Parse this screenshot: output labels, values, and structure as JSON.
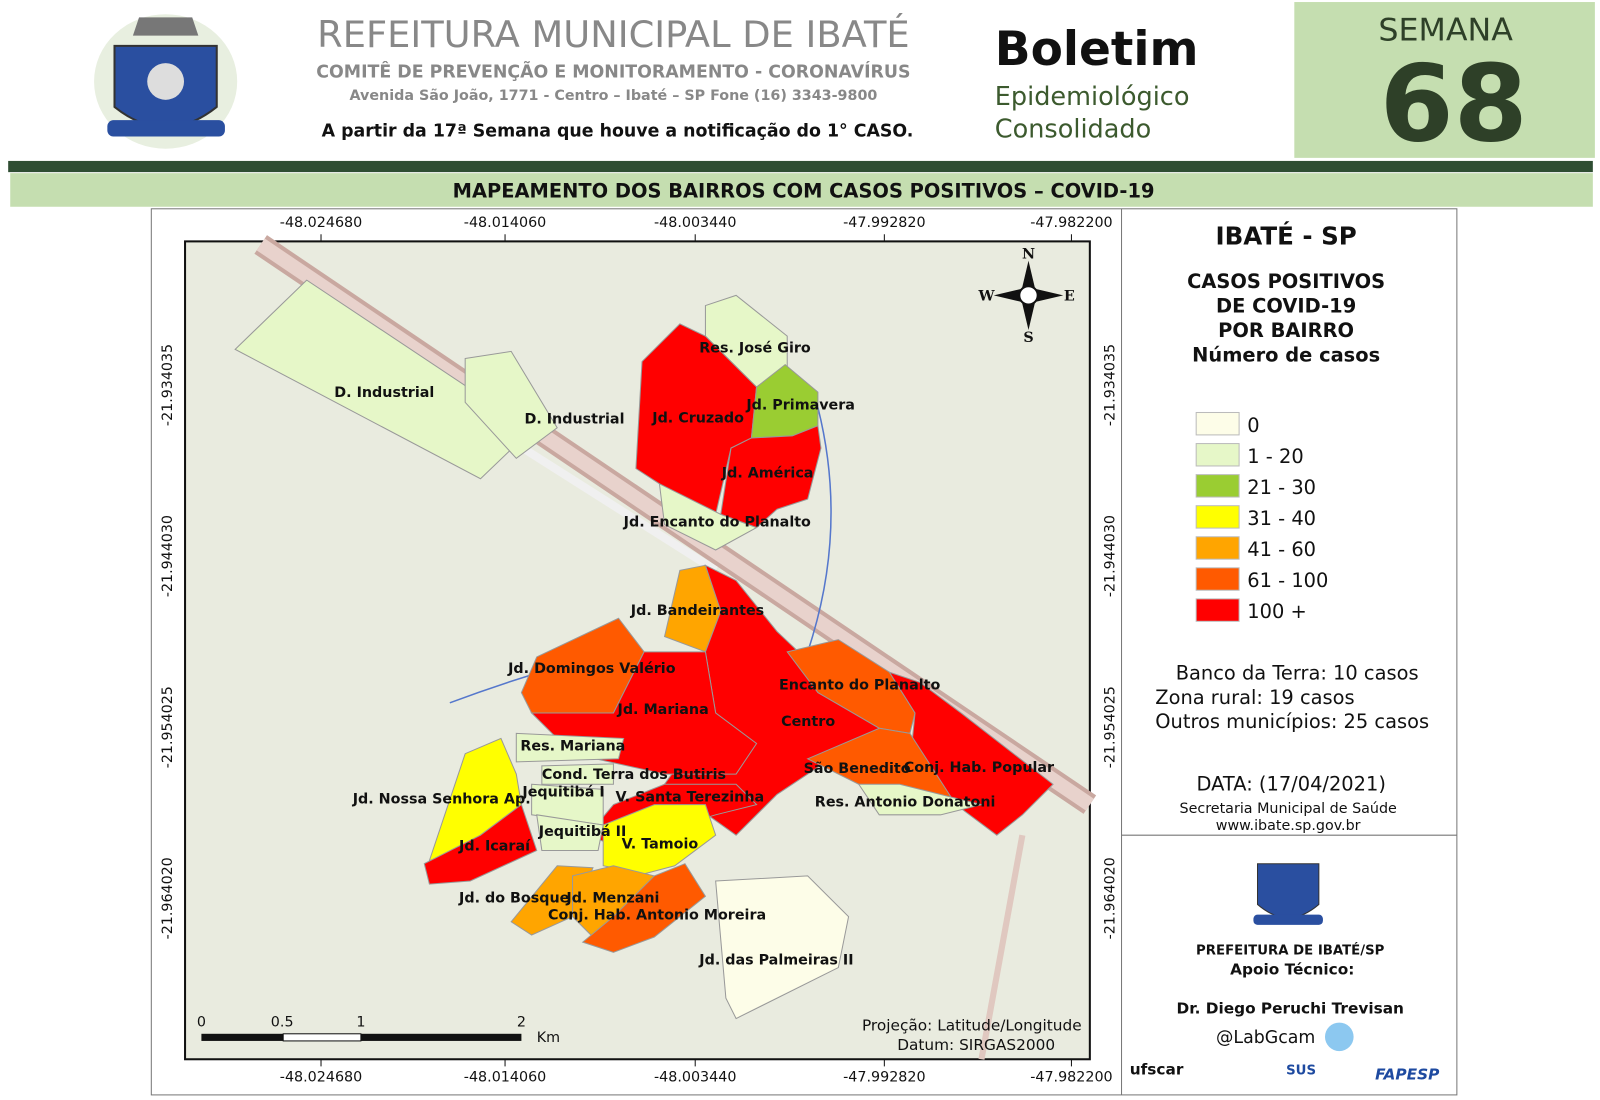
{
  "header": {
    "title": "REFEITURA MUNICIPAL DE IBATÉ",
    "subtitle": "COMITÊ DE PREVENÇÃO E MONITORAMENTO - CORONAVÍRUS",
    "address": "Avenida São João, 1771 - Centro – Ibaté – SP Fone (16) 3343-9800",
    "note": "A partir da 17ª Semana que houve a notificação do 1° CASO."
  },
  "bulletin": {
    "title": "Boletim",
    "line1": "Epidemiológico",
    "line2": "Consolidado",
    "week_label": "SEMANA",
    "week_number": "68"
  },
  "banner": "MAPEAMENTO DOS BAIRROS COM CASOS POSITIVOS – COVID-19",
  "map": {
    "x_labels": [
      "-48.024680",
      "-48.014060",
      "-48.003440",
      "-47.992820",
      "-47.982200"
    ],
    "y_labels": [
      "-21.934035",
      "-21.944030",
      "-21.954025",
      "-21.964020"
    ],
    "compass": [
      "N",
      "S",
      "W",
      "E"
    ],
    "scale_labels": [
      "0",
      "0.5",
      "1",
      "2"
    ],
    "scale_unit": "Km",
    "projection": "Projeção: Latitude/Longitude",
    "datum": "Datum: SIRGAS2000",
    "neighborhoods": [
      {
        "label": "D. Industrial",
        "color": "#e6f7c8"
      },
      {
        "label": "D. Industrial",
        "color": "#e6f7c8"
      },
      {
        "label": "Res. José Giro",
        "color": "#e6f7c8"
      },
      {
        "label": "Jd. Cruzado",
        "color": "#ff0000"
      },
      {
        "label": "Jd. Primavera",
        "color": "#9acd32"
      },
      {
        "label": "Jd. América",
        "color": "#ff0000"
      },
      {
        "label": "Jd. Encanto do Planalto",
        "color": "#e6f7c8"
      },
      {
        "label": "Jd. Bandeirantes",
        "color": "#ffa500"
      },
      {
        "label": "Centro",
        "color": "#ff0000"
      },
      {
        "label": "Jd. Domingos Valério",
        "color": "#ff5a00"
      },
      {
        "label": "Jd. Mariana",
        "color": "#ff0000"
      },
      {
        "label": "Encanto do Planalto",
        "color": "#ff5a00"
      },
      {
        "label": "Conj. Hab. Popular",
        "color": "#ff0000"
      },
      {
        "label": "São Benedito",
        "color": "#ff5a00"
      },
      {
        "label": "Res. Antonio Donatoni",
        "color": "#e6f7c8"
      },
      {
        "label": "V. Santa Terezinha",
        "color": "#ff0000"
      },
      {
        "label": "Res. Mariana",
        "color": "#e6f7c8"
      },
      {
        "label": "Cond. Terra dos Butiris",
        "color": "#e6f7c8"
      },
      {
        "label": "Jequitibá I",
        "color": "#e6f7c8"
      },
      {
        "label": "Jd. Nossa Senhora Ap.",
        "color": "#ffff00"
      },
      {
        "label": "Jd. Icaraí",
        "color": "#ff0000"
      },
      {
        "label": "Jequitibá II",
        "color": "#e6f7c8"
      },
      {
        "label": "V. Tamoio",
        "color": "#ffff00"
      },
      {
        "label": "Jd. do Bosque",
        "color": "#ffa500"
      },
      {
        "label": "Jd. Menzani",
        "color": "#ffa500"
      },
      {
        "label": "Conj. Hab. Antonio Moreira",
        "color": "#ff5a00"
      },
      {
        "label": "Jd. das Palmeiras II",
        "color": "#fdfde8"
      }
    ]
  },
  "legend": {
    "place": "IBATÉ - SP",
    "title_lines": [
      "CASOS POSITIVOS",
      "DE COVID-19",
      "POR BAIRRO",
      "Número de casos"
    ],
    "classes": [
      {
        "label": "0",
        "color": "#fdfde8"
      },
      {
        "label": "1 - 20",
        "color": "#e6f7c8"
      },
      {
        "label": "21 - 30",
        "color": "#9acd32"
      },
      {
        "label": "31 - 40",
        "color": "#ffff00"
      },
      {
        "label": "41 - 60",
        "color": "#ffa500"
      },
      {
        "label": "61 - 100",
        "color": "#ff5a00"
      },
      {
        "label": "100 +",
        "color": "#ff0000"
      }
    ],
    "notes": [
      "Banco da Terra: 10 casos",
      "Zona rural: 19 casos",
      "Outros municípios: 25 casos"
    ],
    "date": "DATA: (17/04/2021)",
    "source": "Secretaria Municipal de Saúde",
    "website": "www.ibate.sp.gov.br"
  },
  "credits": {
    "org": "PREFEITURA DE IBATÉ/SP",
    "support": "Apoio Técnico:",
    "person": "Dr. Diego Peruchi Trevisan",
    "handle": "@LabGcam",
    "logos": [
      "ufscar",
      "SUS",
      "FAPESP"
    ]
  }
}
